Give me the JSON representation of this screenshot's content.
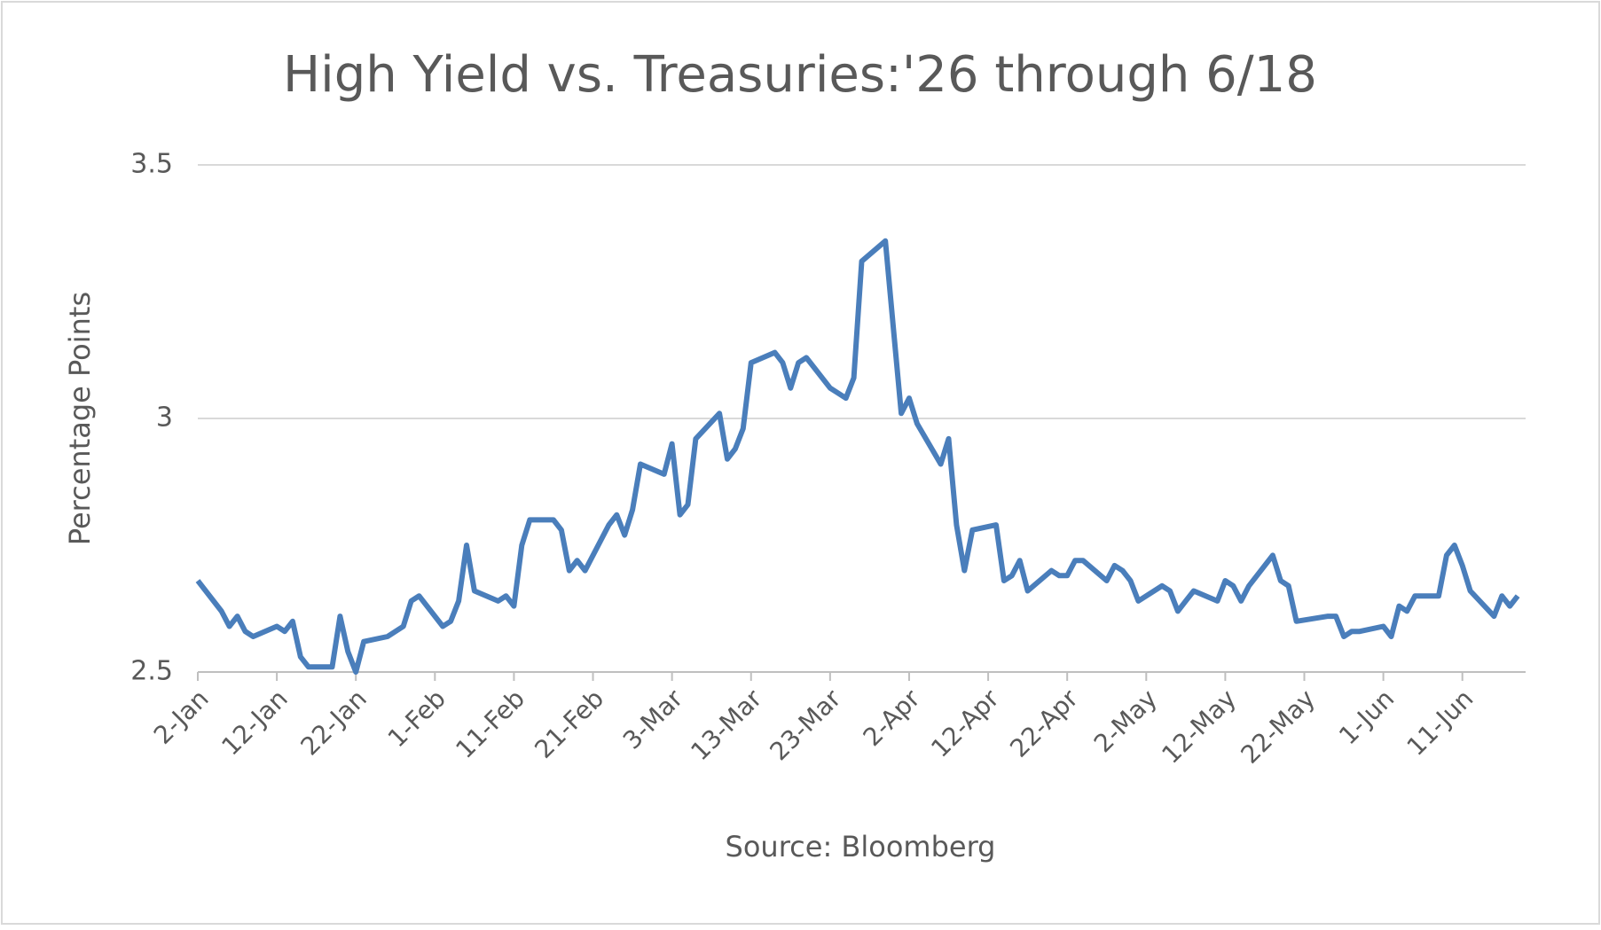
{
  "chart_data": {
    "type": "line",
    "title": "High Yield vs. Treasuries:'26 through 6/18",
    "y_label": "Percentage Points",
    "x_label": "Source: Bloomberg",
    "color": "#4a7ebb",
    "grid": true,
    "ylim": [
      2.5,
      3.5
    ],
    "yticks": [
      2.5,
      3,
      3.5
    ],
    "xlim": [
      "2-Jan",
      "19-Jun"
    ],
    "xticks": [
      "2-Jan",
      "12-Jan",
      "22-Jan",
      "1-Feb",
      "11-Feb",
      "21-Feb",
      "3-Mar",
      "13-Mar",
      "23-Mar",
      "2-Apr",
      "12-Apr",
      "22-Apr",
      "2-May",
      "12-May",
      "22-May",
      "1-Jun",
      "11-Jun"
    ],
    "x": [
      "2-Jan",
      "5-Jan",
      "6-Jan",
      "7-Jan",
      "8-Jan",
      "9-Jan",
      "12-Jan",
      "13-Jan",
      "14-Jan",
      "15-Jan",
      "16-Jan",
      "19-Jan",
      "20-Jan",
      "21-Jan",
      "22-Jan",
      "23-Jan",
      "26-Jan",
      "28-Jan",
      "29-Jan",
      "30-Jan",
      "2-Feb",
      "3-Feb",
      "4-Feb",
      "5-Feb",
      "6-Feb",
      "9-Feb",
      "10-Feb",
      "11-Feb",
      "12-Feb",
      "13-Feb",
      "16-Feb",
      "17-Feb",
      "18-Feb",
      "19-Feb",
      "20-Feb",
      "23-Feb",
      "24-Feb",
      "25-Feb",
      "26-Feb",
      "27-Feb",
      "2-Mar",
      "3-Mar",
      "4-Mar",
      "5-Mar",
      "6-Mar",
      "9-Mar",
      "10-Mar",
      "11-Mar",
      "12-Mar",
      "13-Mar",
      "16-Mar",
      "17-Mar",
      "18-Mar",
      "19-Mar",
      "20-Mar",
      "23-Mar",
      "24-Mar",
      "25-Mar",
      "26-Mar",
      "27-Mar",
      "30-Mar",
      "31-Mar",
      "1-Apr",
      "2-Apr",
      "3-Apr",
      "6-Apr",
      "7-Apr",
      "8-Apr",
      "9-Apr",
      "10-Apr",
      "13-Apr",
      "14-Apr",
      "15-Apr",
      "16-Apr",
      "17-Apr",
      "20-Apr",
      "21-Apr",
      "22-Apr",
      "23-Apr",
      "24-Apr",
      "27-Apr",
      "28-Apr",
      "29-Apr",
      "30-Apr",
      "1-May",
      "4-May",
      "5-May",
      "6-May",
      "7-May",
      "8-May",
      "11-May",
      "12-May",
      "13-May",
      "14-May",
      "15-May",
      "18-May",
      "19-May",
      "20-May",
      "21-May",
      "25-May",
      "26-May",
      "27-May",
      "28-May",
      "29-May",
      "1-Jun",
      "2-Jun",
      "3-Jun",
      "4-Jun",
      "5-Jun",
      "8-Jun",
      "9-Jun",
      "10-Jun",
      "11-Jun",
      "12-Jun",
      "15-Jun",
      "16-Jun",
      "17-Jun",
      "18-Jun"
    ],
    "values": [
      2.68,
      2.62,
      2.59,
      2.61,
      2.58,
      2.57,
      2.59,
      2.58,
      2.6,
      2.53,
      2.51,
      2.51,
      2.61,
      2.54,
      2.5,
      2.56,
      2.57,
      2.59,
      2.64,
      2.65,
      2.59,
      2.6,
      2.64,
      2.75,
      2.66,
      2.64,
      2.65,
      2.63,
      2.75,
      2.8,
      2.8,
      2.78,
      2.7,
      2.72,
      2.7,
      2.79,
      2.81,
      2.77,
      2.82,
      2.91,
      2.89,
      2.95,
      2.81,
      2.83,
      2.96,
      3.01,
      2.92,
      2.94,
      2.98,
      3.11,
      3.13,
      3.11,
      3.06,
      3.11,
      3.12,
      3.06,
      3.05,
      3.04,
      3.08,
      3.31,
      3.35,
      3.18,
      3.01,
      3.04,
      2.99,
      2.91,
      2.96,
      2.79,
      2.7,
      2.78,
      2.79,
      2.68,
      2.69,
      2.72,
      2.66,
      2.7,
      2.69,
      2.69,
      2.72,
      2.72,
      2.68,
      2.71,
      2.7,
      2.68,
      2.64,
      2.67,
      2.66,
      2.62,
      2.64,
      2.66,
      2.64,
      2.68,
      2.67,
      2.64,
      2.67,
      2.73,
      2.68,
      2.67,
      2.6,
      2.61,
      2.61,
      2.57,
      2.58,
      2.58,
      2.59,
      2.57,
      2.63,
      2.62,
      2.65,
      2.65,
      2.73,
      2.75,
      2.71,
      2.66,
      2.61,
      2.65,
      2.63,
      2.65
    ]
  }
}
